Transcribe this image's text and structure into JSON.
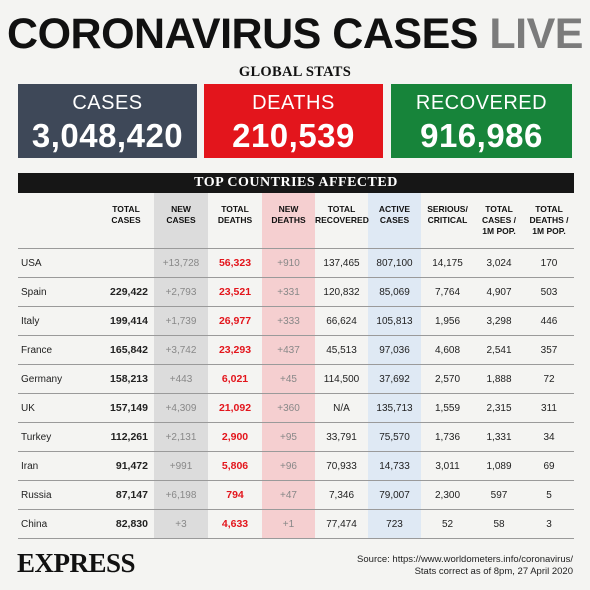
{
  "header": {
    "title_main": "CORONAVIRUS CASES",
    "title_live": "LIVE"
  },
  "global": {
    "title": "GLOBAL STATS",
    "cases_label": "CASES",
    "cases_value": "3,048,420",
    "deaths_label": "DEATHS",
    "deaths_value": "210,539",
    "recovered_label": "RECOVERED",
    "recovered_value": "916,986"
  },
  "table": {
    "title": "TOP COUNTRIES AFFECTED",
    "headers": [
      "",
      "TOTAL\nCASES",
      "NEW\nCASES",
      "TOTAL\nDEATHS",
      "NEW\nDEATHS",
      "TOTAL\nRECOVERED",
      "ACTIVE\nCASES",
      "SERIOUS/\nCRITICAL",
      "TOTAL\nCASES /\n1M POP.",
      "TOTAL\nDEATHS /\n1M POP."
    ],
    "rows": [
      [
        "USA",
        "",
        "+13,728",
        "56,323",
        "+910",
        "137,465",
        "807,100",
        "14,175",
        "3,024",
        "170"
      ],
      [
        "Spain",
        "229,422",
        "+2,793",
        "23,521",
        "+331",
        "120,832",
        "85,069",
        "7,764",
        "4,907",
        "503"
      ],
      [
        "Italy",
        "199,414",
        "+1,739",
        "26,977",
        "+333",
        "66,624",
        "105,813",
        "1,956",
        "3,298",
        "446"
      ],
      [
        "France",
        "165,842",
        "+3,742",
        "23,293",
        "+437",
        "45,513",
        "97,036",
        "4,608",
        "2,541",
        "357"
      ],
      [
        "Germany",
        "158,213",
        "+443",
        "6,021",
        "+45",
        "114,500",
        "37,692",
        "2,570",
        "1,888",
        "72"
      ],
      [
        "UK",
        "157,149",
        "+4,309",
        "21,092",
        "+360",
        "N/A",
        "135,713",
        "1,559",
        "2,315",
        "311"
      ],
      [
        "Turkey",
        "112,261",
        "+2,131",
        "2,900",
        "+95",
        "33,791",
        "75,570",
        "1,736",
        "1,331",
        "34"
      ],
      [
        "Iran",
        "91,472",
        "+991",
        "5,806",
        "+96",
        "70,933",
        "14,733",
        "3,011",
        "1,089",
        "69"
      ],
      [
        "Russia",
        "87,147",
        "+6,198",
        "794",
        "+47",
        "7,346",
        "79,007",
        "2,300",
        "597",
        "5"
      ],
      [
        "China",
        "82,830",
        "+3",
        "4,633",
        "+1",
        "77,474",
        "723",
        "52",
        "58",
        "3"
      ]
    ]
  },
  "footer": {
    "brand": "EXPRESS",
    "source": "Source: https://www.worldometers.info/coronavirus/",
    "stats_note": "Stats correct as of 8pm, 27 April 2020"
  },
  "colors": {
    "cases_box": "#3e4858",
    "deaths_box": "#e3151c",
    "recovered_box": "#17843a",
    "new_cases_col": "#dcdcdc",
    "new_deaths_col": "#f5cfd0",
    "active_col": "#dfe9f4"
  }
}
